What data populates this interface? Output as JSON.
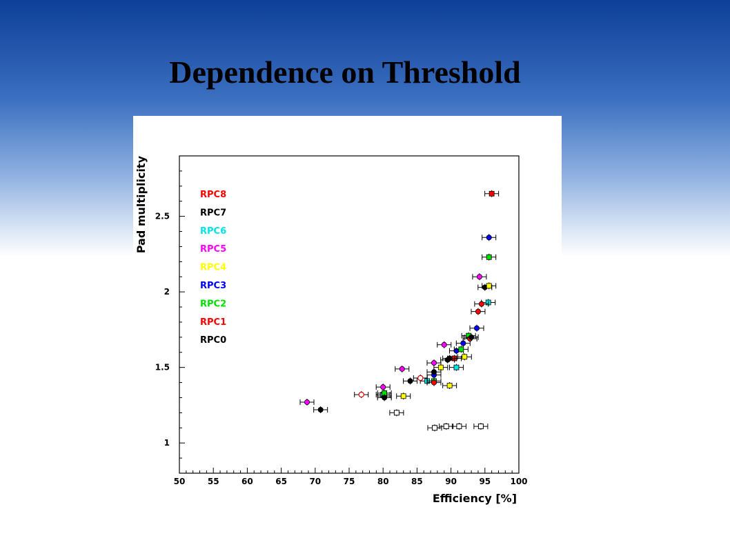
{
  "slide": {
    "title": "Dependence on Threshold"
  },
  "chart_data": {
    "type": "scatter",
    "title": "",
    "xlabel": "Efficiency [%]",
    "ylabel": "Pad multiplicity",
    "xlim": [
      50,
      100
    ],
    "ylim": [
      0.8,
      2.9
    ],
    "x_ticks": [
      50,
      55,
      60,
      65,
      70,
      75,
      80,
      85,
      90,
      95,
      100
    ],
    "y_ticks": [
      1,
      1.5,
      2,
      2.5
    ],
    "y_tick_labels": [
      "1",
      "1.5",
      "2",
      "2.5"
    ],
    "legend_position": "top-left",
    "grid": false,
    "series": [
      {
        "name": "RPC8",
        "color": "#ff0000",
        "marker": "square",
        "points": [
          [
            96.0,
            2.65
          ],
          [
            90.5,
            1.56
          ]
        ]
      },
      {
        "name": "RPC7",
        "color": "#000000",
        "marker": "circle",
        "points": [
          [
            95.0,
            2.03
          ],
          [
            89.5,
            1.55
          ]
        ]
      },
      {
        "name": "RPC6",
        "color": "#00e5e5",
        "marker": "square",
        "points": [
          [
            95.5,
            1.93
          ],
          [
            90.8,
            1.5
          ],
          [
            86.5,
            1.41
          ],
          [
            80.0,
            1.32
          ]
        ]
      },
      {
        "name": "RPC5",
        "color": "#ff00ff",
        "marker": "circle",
        "points": [
          [
            94.2,
            2.1
          ],
          [
            89.0,
            1.65
          ],
          [
            87.5,
            1.53
          ],
          [
            82.8,
            1.49
          ],
          [
            80.0,
            1.37
          ],
          [
            68.8,
            1.27
          ]
        ]
      },
      {
        "name": "RPC4",
        "color": "#ffff00",
        "marker": "square",
        "points": [
          [
            95.6,
            2.04
          ],
          [
            92.0,
            1.57
          ],
          [
            88.5,
            1.5
          ],
          [
            89.8,
            1.38
          ],
          [
            83.0,
            1.31
          ]
        ]
      },
      {
        "name": "RPC3",
        "color": "#0000ff",
        "marker": "circle",
        "points": [
          [
            95.6,
            2.36
          ],
          [
            93.8,
            1.76
          ],
          [
            91.8,
            1.66
          ],
          [
            90.8,
            1.61
          ],
          [
            87.5,
            1.45
          ],
          [
            80.2,
            1.31
          ]
        ]
      },
      {
        "name": "RPC2",
        "color": "#00e000",
        "marker": "square",
        "points": [
          [
            95.6,
            2.23
          ],
          [
            92.6,
            1.71
          ],
          [
            91.5,
            1.62
          ],
          [
            87.5,
            1.41
          ],
          [
            80.2,
            1.33
          ]
        ]
      },
      {
        "name": "RPC1",
        "color": "#ff0000",
        "marker": "circle",
        "points": [
          [
            94.5,
            1.92
          ],
          [
            94.0,
            1.87
          ],
          [
            92.8,
            1.69
          ],
          [
            87.5,
            1.4
          ]
        ]
      },
      {
        "name": "RPC0",
        "color": "#000000",
        "marker": "circle",
        "points": [
          [
            93.0,
            1.7
          ],
          [
            89.8,
            1.56
          ],
          [
            87.5,
            1.47
          ],
          [
            84.0,
            1.41
          ],
          [
            80.2,
            1.3
          ],
          [
            70.8,
            1.22
          ]
        ]
      },
      {
        "name": "",
        "color": "#000000",
        "marker": "open-square",
        "points": [
          [
            94.4,
            1.11
          ],
          [
            91.2,
            1.11
          ],
          [
            89.3,
            1.11
          ],
          [
            87.6,
            1.1
          ],
          [
            82.0,
            1.2
          ]
        ]
      },
      {
        "name": "",
        "color": "#e00000",
        "marker": "open-circle",
        "points": [
          [
            85.5,
            1.43
          ],
          [
            76.8,
            1.32
          ]
        ]
      }
    ]
  }
}
